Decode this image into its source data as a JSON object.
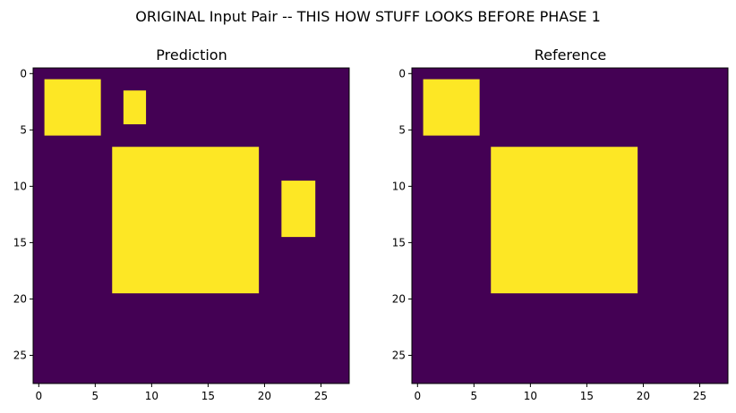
{
  "suptitle": "ORIGINAL Input Pair -- THIS HOW STUFF LOOKS BEFORE PHASE 1",
  "colors": {
    "background": "#440154",
    "foreground": "#fde725",
    "axis": "#000000"
  },
  "chart_data": [
    {
      "type": "heatmap",
      "title": "Prediction",
      "grid_size": [
        28,
        28
      ],
      "xlim": [
        -0.5,
        27.5
      ],
      "ylim": [
        27.5,
        -0.5
      ],
      "xticks": [
        0,
        5,
        10,
        15,
        20,
        25
      ],
      "yticks": [
        0,
        5,
        10,
        15,
        20,
        25
      ],
      "grid": false,
      "colormap": "viridis",
      "value_range": [
        0,
        1
      ],
      "filled_regions": [
        {
          "rows": [
            1,
            5
          ],
          "cols": [
            1,
            5
          ],
          "value": 1
        },
        {
          "rows": [
            2,
            4
          ],
          "cols": [
            8,
            9
          ],
          "value": 1
        },
        {
          "rows": [
            7,
            19
          ],
          "cols": [
            7,
            19
          ],
          "value": 1
        },
        {
          "rows": [
            10,
            14
          ],
          "cols": [
            22,
            24
          ],
          "value": 1
        }
      ]
    },
    {
      "type": "heatmap",
      "title": "Reference",
      "grid_size": [
        28,
        28
      ],
      "xlim": [
        -0.5,
        27.5
      ],
      "ylim": [
        27.5,
        -0.5
      ],
      "xticks": [
        0,
        5,
        10,
        15,
        20,
        25
      ],
      "yticks": [
        0,
        5,
        10,
        15,
        20,
        25
      ],
      "grid": false,
      "colormap": "viridis",
      "value_range": [
        0,
        1
      ],
      "filled_regions": [
        {
          "rows": [
            1,
            5
          ],
          "cols": [
            1,
            5
          ],
          "value": 1
        },
        {
          "rows": [
            7,
            19
          ],
          "cols": [
            7,
            19
          ],
          "value": 1
        }
      ]
    }
  ]
}
